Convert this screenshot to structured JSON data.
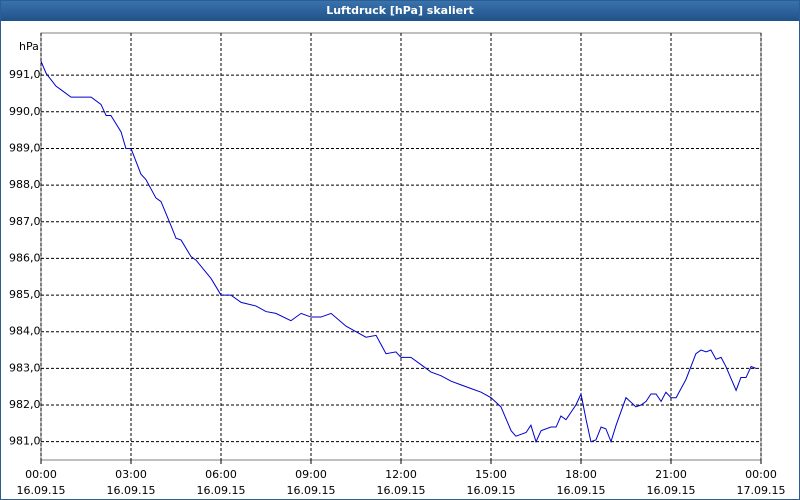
{
  "chart_data": {
    "type": "line",
    "title": "Luftdruck [hPa] skaliert",
    "ylabel": "hPa",
    "xlim": [
      0,
      24
    ],
    "ylim": [
      980.5,
      992.15
    ],
    "grid": true,
    "xticks": [
      {
        "value": 0,
        "label": "00:00",
        "sublabel": "16.09.15"
      },
      {
        "value": 3,
        "label": "03:00",
        "sublabel": "16.09.15"
      },
      {
        "value": 6,
        "label": "06:00",
        "sublabel": "16.09.15"
      },
      {
        "value": 9,
        "label": "09:00",
        "sublabel": "16.09.15"
      },
      {
        "value": 12,
        "label": "12:00",
        "sublabel": "16.09.15"
      },
      {
        "value": 15,
        "label": "15:00",
        "sublabel": "16.09.15"
      },
      {
        "value": 18,
        "label": "18:00",
        "sublabel": "16.09.15"
      },
      {
        "value": 21,
        "label": "21:00",
        "sublabel": "16.09.15"
      },
      {
        "value": 24,
        "label": "00:00",
        "sublabel": "17.09.15"
      }
    ],
    "yticks": [
      {
        "value": 981,
        "label": "981,0"
      },
      {
        "value": 982,
        "label": "982,0"
      },
      {
        "value": 983,
        "label": "983,0"
      },
      {
        "value": 984,
        "label": "984,0"
      },
      {
        "value": 985,
        "label": "985,0"
      },
      {
        "value": 986,
        "label": "986,0"
      },
      {
        "value": 987,
        "label": "987,0"
      },
      {
        "value": 988,
        "label": "988,0"
      },
      {
        "value": 989,
        "label": "989,0"
      },
      {
        "value": 990,
        "label": "990,0"
      },
      {
        "value": 991,
        "label": "991,0"
      }
    ],
    "x": [
      0,
      0.17,
      0.5,
      0.67,
      1,
      1.67,
      2,
      2.17,
      2.33,
      2.67,
      2.83,
      3,
      3.33,
      3.5,
      3.83,
      4,
      4.33,
      4.5,
      4.67,
      5,
      5.17,
      5.67,
      6,
      6.33,
      6.67,
      7.17,
      7.5,
      7.83,
      8.33,
      8.67,
      9,
      9.33,
      9.67,
      10.17,
      10.5,
      10.83,
      11.17,
      11.5,
      11.83,
      12,
      12.33,
      12.67,
      13,
      13.33,
      13.67,
      14,
      14.33,
      14.67,
      15,
      15.33,
      15.67,
      15.83,
      16.17,
      16.33,
      16.5,
      16.67,
      17,
      17.17,
      17.33,
      17.5,
      17.83,
      18,
      18.17,
      18.33,
      18.5,
      18.67,
      18.83,
      19,
      19.17,
      19.5,
      19.83,
      20,
      20.17,
      20.33,
      20.5,
      20.67,
      20.83,
      21,
      21.17,
      21.5,
      21.83,
      22,
      22.17,
      22.33,
      22.5,
      22.67,
      22.83,
      23.17,
      23.33,
      23.5,
      23.67,
      23.83
    ],
    "series": [
      {
        "color": "#0000cc",
        "values": [
          991.38,
          991.05,
          990.7,
          990.6,
          990.4,
          990.4,
          990.2,
          989.9,
          989.9,
          989.45,
          989.0,
          989.0,
          988.3,
          988.15,
          987.65,
          987.55,
          986.9,
          986.55,
          986.5,
          986.05,
          985.95,
          985.45,
          985.0,
          985.0,
          984.8,
          984.7,
          984.55,
          984.5,
          984.3,
          984.5,
          984.4,
          984.4,
          984.5,
          984.15,
          984.0,
          983.85,
          983.9,
          983.4,
          983.45,
          983.3,
          983.3,
          983.1,
          982.9,
          982.8,
          982.65,
          982.55,
          982.45,
          982.35,
          982.2,
          981.95,
          981.3,
          981.15,
          981.25,
          981.45,
          981.0,
          981.3,
          981.4,
          981.4,
          981.7,
          981.6,
          982.0,
          982.3,
          981.6,
          981.0,
          981.05,
          981.4,
          981.35,
          981.0,
          981.45,
          982.2,
          981.95,
          982.0,
          982.1,
          982.3,
          982.3,
          982.1,
          982.35,
          982.2,
          982.2,
          982.7,
          983.4,
          983.5,
          983.45,
          983.5,
          983.25,
          983.3,
          983.05,
          982.4,
          982.75,
          982.75,
          983.05,
          983.0
        ]
      }
    ]
  }
}
